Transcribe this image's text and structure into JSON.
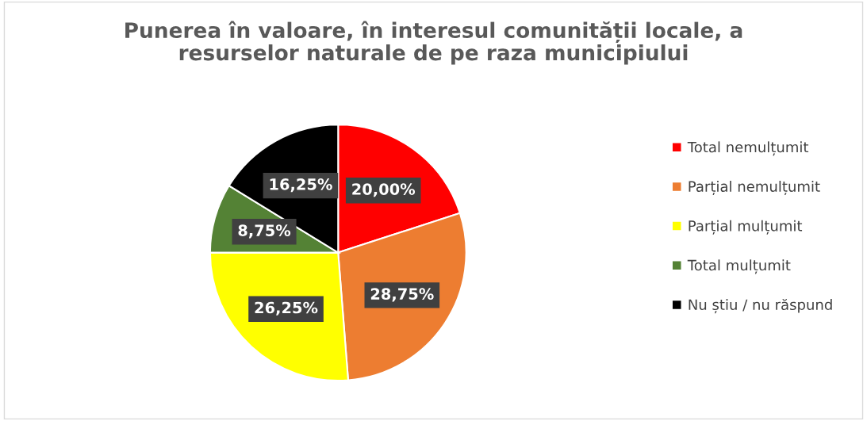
{
  "chart_data": {
    "type": "pie",
    "title": "Punerea în valoare, în interesul comunității locale, a\nresurselor naturale de pe raza municipiului",
    "categories": [
      "Total nemulțumit",
      "Parțial nemulțumit",
      "Parțial mulțumit",
      "Total mulțumit",
      "Nu știu / nu răspund"
    ],
    "values": [
      20.0,
      28.75,
      26.25,
      8.75,
      16.25
    ],
    "value_labels": [
      "20,00%",
      "28,75%",
      "26,25%",
      "8,75%",
      "16,25%"
    ],
    "colors": [
      "#ff0000",
      "#ed7d31",
      "#ffff00",
      "#548235",
      "#000000"
    ],
    "legend": "right"
  }
}
